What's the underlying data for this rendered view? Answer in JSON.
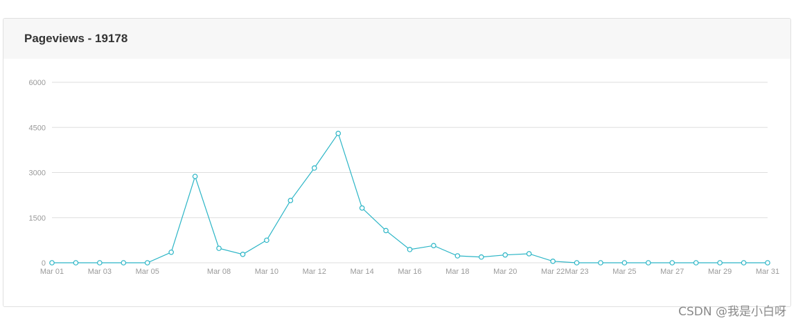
{
  "card": {
    "title": "Pageviews - 19178"
  },
  "watermark": "CSDN @我是小白呀",
  "colors": {
    "line": "#2bb5c6",
    "grid": "#dddddd",
    "axis_text": "#999999",
    "header_bg": "#f7f7f7"
  },
  "chart_data": {
    "type": "line",
    "title": "Pageviews - 19178",
    "xlabel": "",
    "ylabel": "",
    "ylim": [
      0,
      6000
    ],
    "yticks": [
      0,
      1500,
      3000,
      4500,
      6000
    ],
    "grid": true,
    "legend": "none",
    "x": [
      "Mar 01",
      "Mar 02",
      "Mar 03",
      "Mar 04",
      "Mar 05",
      "Mar 06",
      "Mar 07",
      "Mar 08",
      "Mar 09",
      "Mar 10",
      "Mar 11",
      "Mar 12",
      "Mar 13",
      "Mar 14",
      "Mar 15",
      "Mar 16",
      "Mar 17",
      "Mar 18",
      "Mar 19",
      "Mar 20",
      "Mar 21",
      "Mar 22",
      "Mar 23",
      "Mar 24",
      "Mar 25",
      "Mar 26",
      "Mar 27",
      "Mar 28",
      "Mar 29",
      "Mar 30",
      "Mar 31"
    ],
    "xtick_labels": [
      "Mar 01",
      "Mar 03",
      "Mar 05",
      "Mar 08",
      "Mar 10",
      "Mar 12",
      "Mar 14",
      "Mar 16",
      "Mar 18",
      "Mar 20",
      "Mar 22",
      "Mar 23",
      "Mar 25",
      "Mar 27",
      "Mar 29",
      "Mar 31"
    ],
    "series": [
      {
        "values": [
          0,
          0,
          0,
          0,
          0,
          350,
          2870,
          480,
          280,
          750,
          2070,
          3150,
          4300,
          1820,
          1070,
          440,
          570,
          230,
          190,
          260,
          300,
          50,
          0,
          0,
          0,
          0,
          0,
          0,
          0,
          0,
          0
        ]
      }
    ]
  }
}
